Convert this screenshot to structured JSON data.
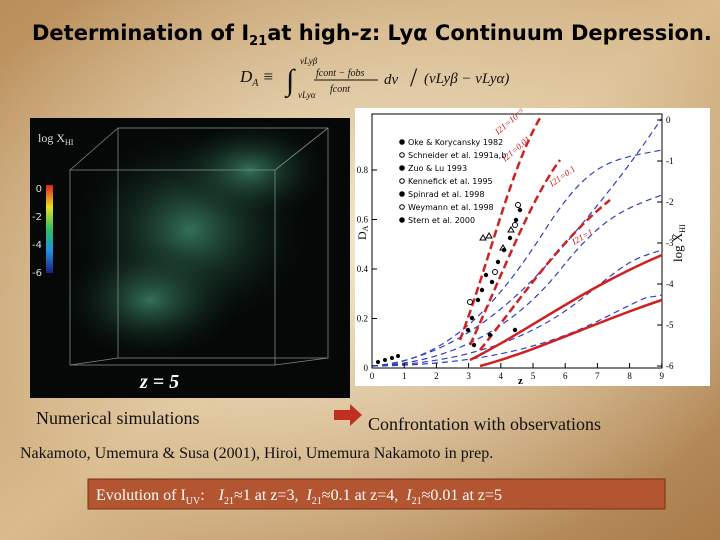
{
  "header": {
    "title_pre": "Determination of I",
    "title_sub": "21",
    "title_post": "at high-z:  Lyα  Continuum Depression."
  },
  "formula": {
    "lhs": "D",
    "lhs_sub": "A",
    "equiv": "≡",
    "integral": "∫",
    "upper": "νLyβ",
    "lower": "νLyα",
    "numerator": "fcont − fobs",
    "denominator": "fcont",
    "differential": "dν",
    "slash": "/",
    "divisor": "(νLyβ − νLyα)"
  },
  "simulation": {
    "axis_label": "log X",
    "axis_label_sub": "HI",
    "colorbar_ticks": [
      "0",
      "-2",
      "-4",
      "-6"
    ],
    "redshift": "z = 5",
    "caption": "Numerical simulations"
  },
  "observations": {
    "y_label": "D",
    "y_label_sub": "A",
    "x_label": "z",
    "y_ticks": [
      "0",
      "0.2",
      "0.4",
      "0.6",
      "0.8"
    ],
    "x_ticks": [
      "0",
      "1",
      "2",
      "3",
      "4",
      "5",
      "6",
      "7",
      "8",
      "9"
    ],
    "right_ticks": [
      "0",
      "-1",
      "-2",
      "-3",
      "-4",
      "-5",
      "-6"
    ],
    "right_label": "log X̄",
    "right_label_sub": "HI",
    "legend": [
      "Oke & Korycansky 1982",
      "Schneider et al. 1991a,b",
      "Zuo & Lu 1993",
      "Kennefick et al. 1995",
      "Spinrad et al. 1998",
      "Weymann et al. 1998",
      "Stern et al. 2000"
    ],
    "curve_labels": [
      "I21=10⁻³",
      "I21=0.01",
      "I21=0.1",
      "I21=1"
    ],
    "caption": "Confrontation with observations"
  },
  "reference": "Nakamoto, Umemura & Susa (2001), Hiroi, Umemura Nakamoto in prep.",
  "summary": {
    "lead": "Evolution of I",
    "lead_sub": "UV",
    "colon": ":",
    "items": [
      {
        "sym": "I",
        "sub": "21",
        "text": "≈1 at z=3,"
      },
      {
        "sym": "I",
        "sub": "21",
        "text": "≈0.1 at z=4,"
      },
      {
        "sym": "I",
        "sub": "21",
        "text": "≈0.01 at z=5"
      }
    ]
  }
}
